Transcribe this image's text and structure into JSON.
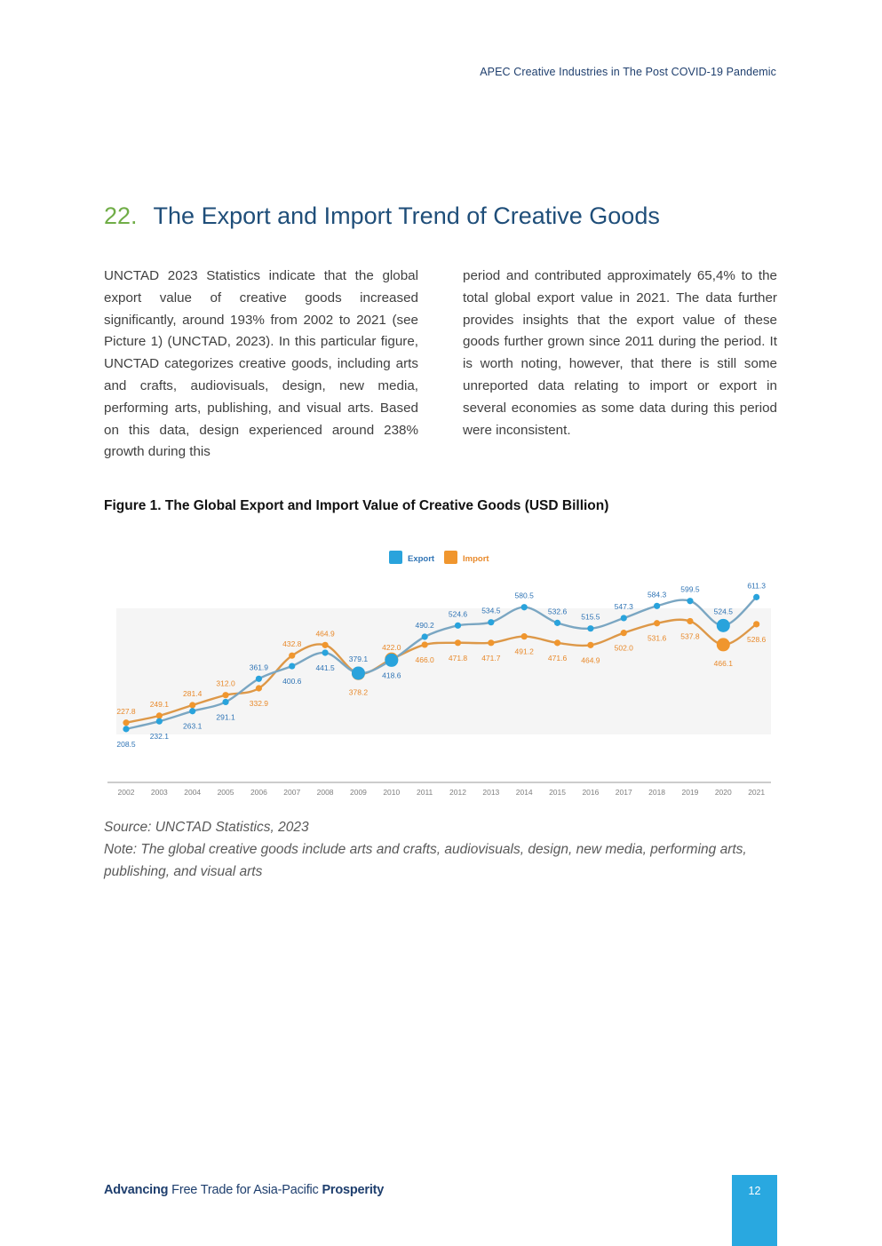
{
  "header": {
    "running_title": "APEC Creative Industries in The Post COVID-19 Pandemic"
  },
  "section": {
    "number": "22.",
    "title": "The Export and Import Trend of Creative Goods"
  },
  "body": {
    "left_column": "UNCTAD 2023 Statistics indicate that the global export value of creative goods increased significantly, around 193% from 2002 to 2021 (see Picture 1) (UNCTAD, 2023). In this particular figure, UNCTAD categorizes creative goods, including arts and crafts, audiovisuals, design, new media, performing arts, publishing, and visual arts. Based on this data, design experienced around 238% growth during this",
    "right_column": "period and contributed approximately 65,4% to the total global export value in 2021. The data further provides insights that the export value of these goods further grown since 2011 during the period. It is worth noting, however, that there is still some unreported data relating to import or export in several economies as some data during this period were inconsistent."
  },
  "figure": {
    "caption": "Figure 1. The Global Export and Import Value of Creative Goods (USD Billion)",
    "source": "Source: UNCTAD Statistics, 2023",
    "note": "Note: The global creative goods include arts and crafts, audiovisuals, design, new media, performing arts, publishing, and visual arts"
  },
  "chart_data": {
    "type": "line",
    "title": "The Global Export and Import Value of Creative Goods (USD Billion)",
    "xlabel": "",
    "ylabel": "",
    "ylim": [
      200,
      615
    ],
    "grid": false,
    "legend_position": "top-center",
    "categories": [
      "2002",
      "2003",
      "2004",
      "2005",
      "2006",
      "2007",
      "2008",
      "2009",
      "2010",
      "2011",
      "2012",
      "2013",
      "2014",
      "2015",
      "2016",
      "2017",
      "2018",
      "2019",
      "2020",
      "2021"
    ],
    "series": [
      {
        "name": "Export",
        "color": "#29a3dc",
        "line_color": "#7aa6c2",
        "label_color": "#2f74b5",
        "values": [
          208.5,
          232.1,
          263.1,
          291.1,
          361.9,
          400.6,
          441.5,
          379.1,
          418.6,
          490.2,
          524.6,
          534.5,
          580.5,
          532.6,
          515.5,
          547.3,
          584.3,
          599.5,
          524.5,
          611.3
        ],
        "labels": [
          "208.5",
          "232.1",
          "263.1",
          "291.1",
          "361.9",
          "400.6",
          "441.5",
          "379.1",
          "418.6",
          "490.2",
          "524.6",
          "534.5",
          "580.5",
          "532.6",
          "515.5",
          "547.3",
          "584.3",
          "599.5",
          "524.5",
          "611.3"
        ]
      },
      {
        "name": "Import",
        "color": "#f0962e",
        "line_color": "#dd9848",
        "label_color": "#e8892a",
        "values": [
          227.8,
          249.1,
          281.4,
          312.0,
          332.9,
          432.8,
          464.9,
          378.2,
          422.0,
          466.0,
          471.8,
          471.7,
          491.2,
          471.6,
          464.9,
          502.0,
          531.6,
          537.8,
          466.1,
          528.6
        ],
        "labels": [
          "227.8",
          "249.1",
          "281.4",
          "312.0",
          "332.9",
          "432.8",
          "464.9",
          "378.2",
          "422.0",
          "466.0",
          "471.8",
          "471.7",
          "491.2",
          "471.6",
          "464.9",
          "502.0",
          "531.6",
          "537.8",
          "466.1",
          "528.6"
        ]
      }
    ],
    "highlight": {
      "Export": [
        "2009",
        "2010",
        "2020"
      ],
      "Import": [
        "2009",
        "2010",
        "2020"
      ]
    }
  },
  "footer": {
    "tagline_1": "Advancing ",
    "tagline_2": "Free Trade for Asia-Pacific ",
    "tagline_3": "Prosperity",
    "page_number": "12"
  }
}
